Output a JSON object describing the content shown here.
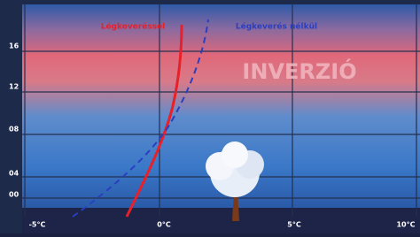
{
  "labels": {
    "with_mixing": "Légkeveréssel",
    "without_mixing": "Légkeverés nélkül",
    "inversion": "INVERZIÓ"
  },
  "y_axis": [
    "16",
    "12",
    "08",
    "04",
    "00"
  ],
  "x_axis": [
    "-5°C",
    "0°C",
    "5°C",
    "10°C"
  ]
}
